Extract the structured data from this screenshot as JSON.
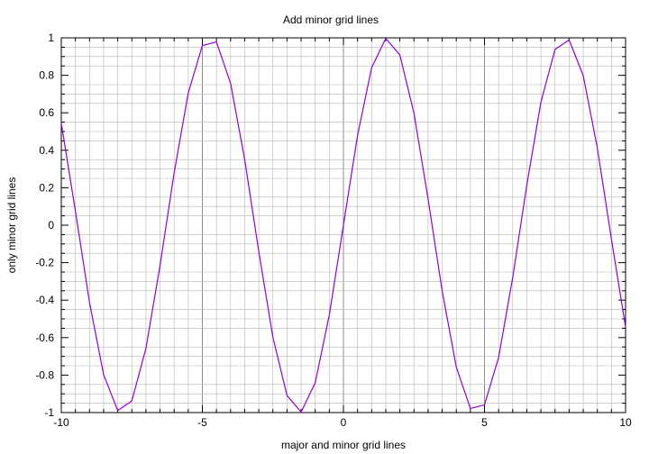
{
  "chart_data": {
    "type": "line",
    "title": "Add minor grid lines",
    "xlabel": "major and minor grid lines",
    "ylabel": "only minor grid lines",
    "xlim": [
      -10,
      10
    ],
    "ylim": [
      -1,
      1
    ],
    "x_ticks": [
      -10,
      -5,
      0,
      5,
      10
    ],
    "x_tick_labels": [
      "-10",
      "-5",
      "0",
      "5",
      "10"
    ],
    "x_minor_step": 0.5,
    "y_ticks": [
      -1,
      -0.8,
      -0.6,
      -0.4,
      -0.2,
      0,
      0.2,
      0.4,
      0.6,
      0.8,
      1
    ],
    "y_tick_labels": [
      "-1",
      "-0.8",
      "-0.6",
      "-0.4",
      "-0.2",
      "0",
      "0.2",
      "0.4",
      "0.6",
      "0.8",
      "1"
    ],
    "y_minor_step": 0.05,
    "grid": {
      "x_major": true,
      "x_minor": true,
      "y_major": false,
      "y_minor": true
    },
    "legend": "none",
    "series": [
      {
        "color": "#9400d3",
        "function": "sin(x)",
        "x": [
          -10,
          -9.5,
          -9,
          -8.5,
          -8,
          -7.5,
          -7,
          -6.5,
          -6,
          -5.5,
          -5,
          -4.5,
          -4,
          -3.5,
          -3,
          -2.5,
          -2,
          -1.5,
          -1,
          -0.5,
          0,
          0.5,
          1,
          1.5,
          2,
          2.5,
          3,
          3.5,
          4,
          4.5,
          5,
          5.5,
          6,
          6.5,
          7,
          7.5,
          8,
          8.5,
          9,
          9.5,
          10
        ],
        "y": [
          0.544,
          0.075,
          -0.412,
          -0.798,
          -0.989,
          -0.938,
          -0.657,
          -0.215,
          0.279,
          0.706,
          0.959,
          0.978,
          0.757,
          0.351,
          -0.141,
          -0.598,
          -0.909,
          -0.997,
          -0.841,
          -0.479,
          0,
          0.479,
          0.841,
          0.997,
          0.909,
          0.598,
          0.141,
          -0.351,
          -0.757,
          -0.978,
          -0.959,
          -0.706,
          -0.279,
          0.215,
          0.657,
          0.938,
          0.989,
          0.798,
          0.412,
          -0.075,
          -0.544
        ]
      }
    ]
  }
}
